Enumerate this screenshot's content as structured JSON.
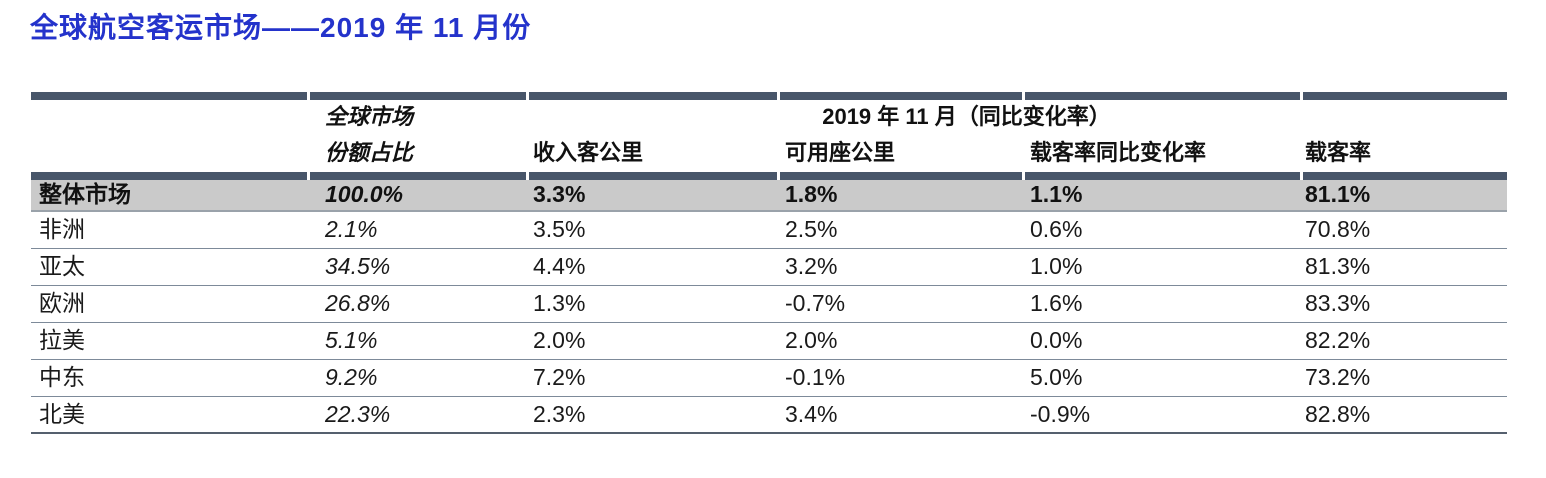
{
  "page": {
    "title": "全球航空客运市场——2019 年 11 月份"
  },
  "colors": {
    "accent_blue": "#2433cb",
    "bar": "#48566a",
    "total_bg": "#cacaca"
  },
  "table": {
    "group_header": "2019 年 11 月（同比变化率）",
    "share_header_line1": "全球市场",
    "share_header_line2": "份额占比",
    "col_headers": [
      "收入客公里",
      "可用座公里",
      "载客率同比变化率",
      "载客率"
    ],
    "total_row": {
      "label": "整体市场",
      "share": "100.0%",
      "rpk": "3.3%",
      "ask": "1.8%",
      "plf_change": "1.1%",
      "plf": "81.1%"
    },
    "rows": [
      {
        "label": "非洲",
        "share": "2.1%",
        "rpk": "3.5%",
        "ask": "2.5%",
        "plf_change": "0.6%",
        "plf": "70.8%"
      },
      {
        "label": "亚太",
        "share": "34.5%",
        "rpk": "4.4%",
        "ask": "3.2%",
        "plf_change": "1.0%",
        "plf": "81.3%"
      },
      {
        "label": "欧洲",
        "share": "26.8%",
        "rpk": "1.3%",
        "ask": "-0.7%",
        "plf_change": "1.6%",
        "plf": "83.3%"
      },
      {
        "label": "拉美",
        "share": "5.1%",
        "rpk": "2.0%",
        "ask": "2.0%",
        "plf_change": "0.0%",
        "plf": "82.2%"
      },
      {
        "label": "中东",
        "share": "9.2%",
        "rpk": "7.2%",
        "ask": "-0.1%",
        "plf_change": "5.0%",
        "plf": "73.2%"
      },
      {
        "label": "北美",
        "share": "22.3%",
        "rpk": "2.3%",
        "ask": "3.4%",
        "plf_change": "-0.9%",
        "plf": "82.8%"
      }
    ]
  }
}
